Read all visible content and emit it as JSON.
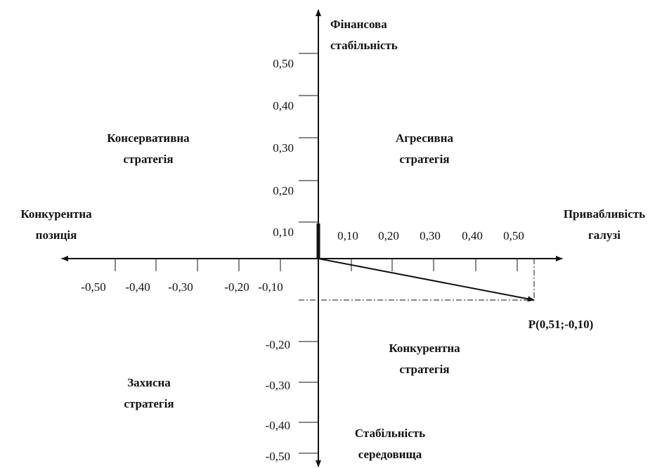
{
  "axes": {
    "top": [
      "Фінансова",
      "стабільність"
    ],
    "bottom": [
      "Стабільність",
      "середовища"
    ],
    "left": [
      "Конкурентна",
      "позиція"
    ],
    "right": [
      "Привабливість",
      "галузі"
    ]
  },
  "quadrants": {
    "top_left": [
      "Консервативна",
      "стратегія"
    ],
    "top_right": [
      "Агресивна",
      "стратегія"
    ],
    "bottom_left": [
      "Захисна",
      "стратегія"
    ],
    "bottom_right": [
      "Конкурентна",
      "стратегія"
    ]
  },
  "x_ticks_positive": [
    "0,10",
    "0,20",
    "0,30",
    "0,40",
    "0,50"
  ],
  "x_ticks_negative": [
    "-0,50",
    "-0,40",
    "-0,30",
    "-0,20",
    "-0,10"
  ],
  "y_ticks_positive": [
    "0,50",
    "0,40",
    "0,30",
    "0,20",
    "0,10"
  ],
  "y_ticks_negative": [
    "-0,20",
    "-0,30",
    "-0,40",
    "-0,50"
  ],
  "point_label": "P(0,51;-0,10)"
}
